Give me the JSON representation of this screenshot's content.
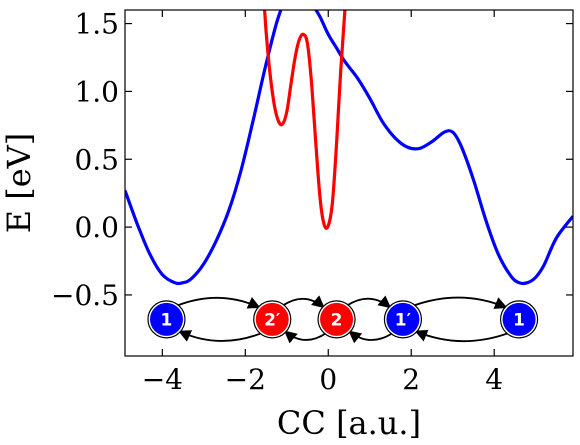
{
  "chart_data": {
    "type": "line",
    "title": "",
    "xlabel": "CC [a.u.]",
    "ylabel": "E [eV]",
    "xlim": [
      -4.9,
      5.9
    ],
    "ylim": [
      -0.95,
      1.6
    ],
    "xticks": [
      "−4",
      "−2",
      "0",
      "2",
      "4"
    ],
    "xtick_values": [
      -4,
      -2,
      0,
      2,
      4
    ],
    "yticks": [
      "−0.5",
      "0.0",
      "0.5",
      "1.0",
      "1.5"
    ],
    "ytick_values": [
      -0.5,
      0.0,
      0.5,
      1.0,
      1.5
    ],
    "grid": false,
    "series": [
      {
        "color": "#0000ff",
        "x": [
          -4.9,
          -4.6,
          -4.3,
          -4.0,
          -3.7,
          -3.5,
          -3.3,
          -3.0,
          -2.7,
          -2.4,
          -2.1,
          -1.8,
          -1.5,
          -1.2,
          -0.9,
          -0.6,
          -0.4,
          -0.2,
          0.0,
          0.2,
          0.4,
          0.7,
          1.0,
          1.3,
          1.6,
          1.9,
          2.2,
          2.5,
          2.8,
          3.0,
          3.2,
          3.5,
          3.8,
          4.1,
          4.4,
          4.6,
          4.8,
          5.0,
          5.2,
          5.5,
          5.9
        ],
        "y": [
          0.27,
          0.02,
          -0.2,
          -0.35,
          -0.41,
          -0.41,
          -0.38,
          -0.27,
          -0.1,
          0.12,
          0.42,
          0.8,
          1.2,
          1.55,
          1.75,
          1.75,
          1.65,
          1.55,
          1.42,
          1.32,
          1.22,
          1.1,
          0.95,
          0.78,
          0.66,
          0.59,
          0.58,
          0.63,
          0.7,
          0.7,
          0.6,
          0.35,
          0.05,
          -0.2,
          -0.36,
          -0.41,
          -0.41,
          -0.37,
          -0.28,
          -0.08,
          0.08
        ]
      },
      {
        "color": "#ff0000",
        "x": [
          -1.6,
          -1.5,
          -1.4,
          -1.3,
          -1.2,
          -1.1,
          -1.0,
          -0.9,
          -0.8,
          -0.7,
          -0.6,
          -0.5,
          -0.4,
          -0.3,
          -0.2,
          -0.1,
          0.0,
          0.1,
          0.2,
          0.3,
          0.4,
          0.5
        ],
        "y": [
          1.9,
          1.45,
          1.12,
          0.9,
          0.78,
          0.76,
          0.85,
          1.05,
          1.25,
          1.38,
          1.42,
          1.35,
          1.05,
          0.62,
          0.22,
          0.02,
          0.01,
          0.18,
          0.62,
          1.15,
          1.6,
          2.0
        ]
      }
    ],
    "annotations": {
      "nodes": [
        {
          "label": "1",
          "color": "#0000ff",
          "x": -3.9,
          "y": -0.68
        },
        {
          "label": "2′",
          "color": "#ff0000",
          "x": -1.35,
          "y": -0.68
        },
        {
          "label": "2",
          "color": "#ff0000",
          "x": 0.2,
          "y": -0.68
        },
        {
          "label": "1′",
          "color": "#0000ff",
          "x": 1.8,
          "y": -0.68
        },
        {
          "label": "1",
          "color": "#0000ff",
          "x": 4.6,
          "y": -0.68
        }
      ]
    }
  }
}
